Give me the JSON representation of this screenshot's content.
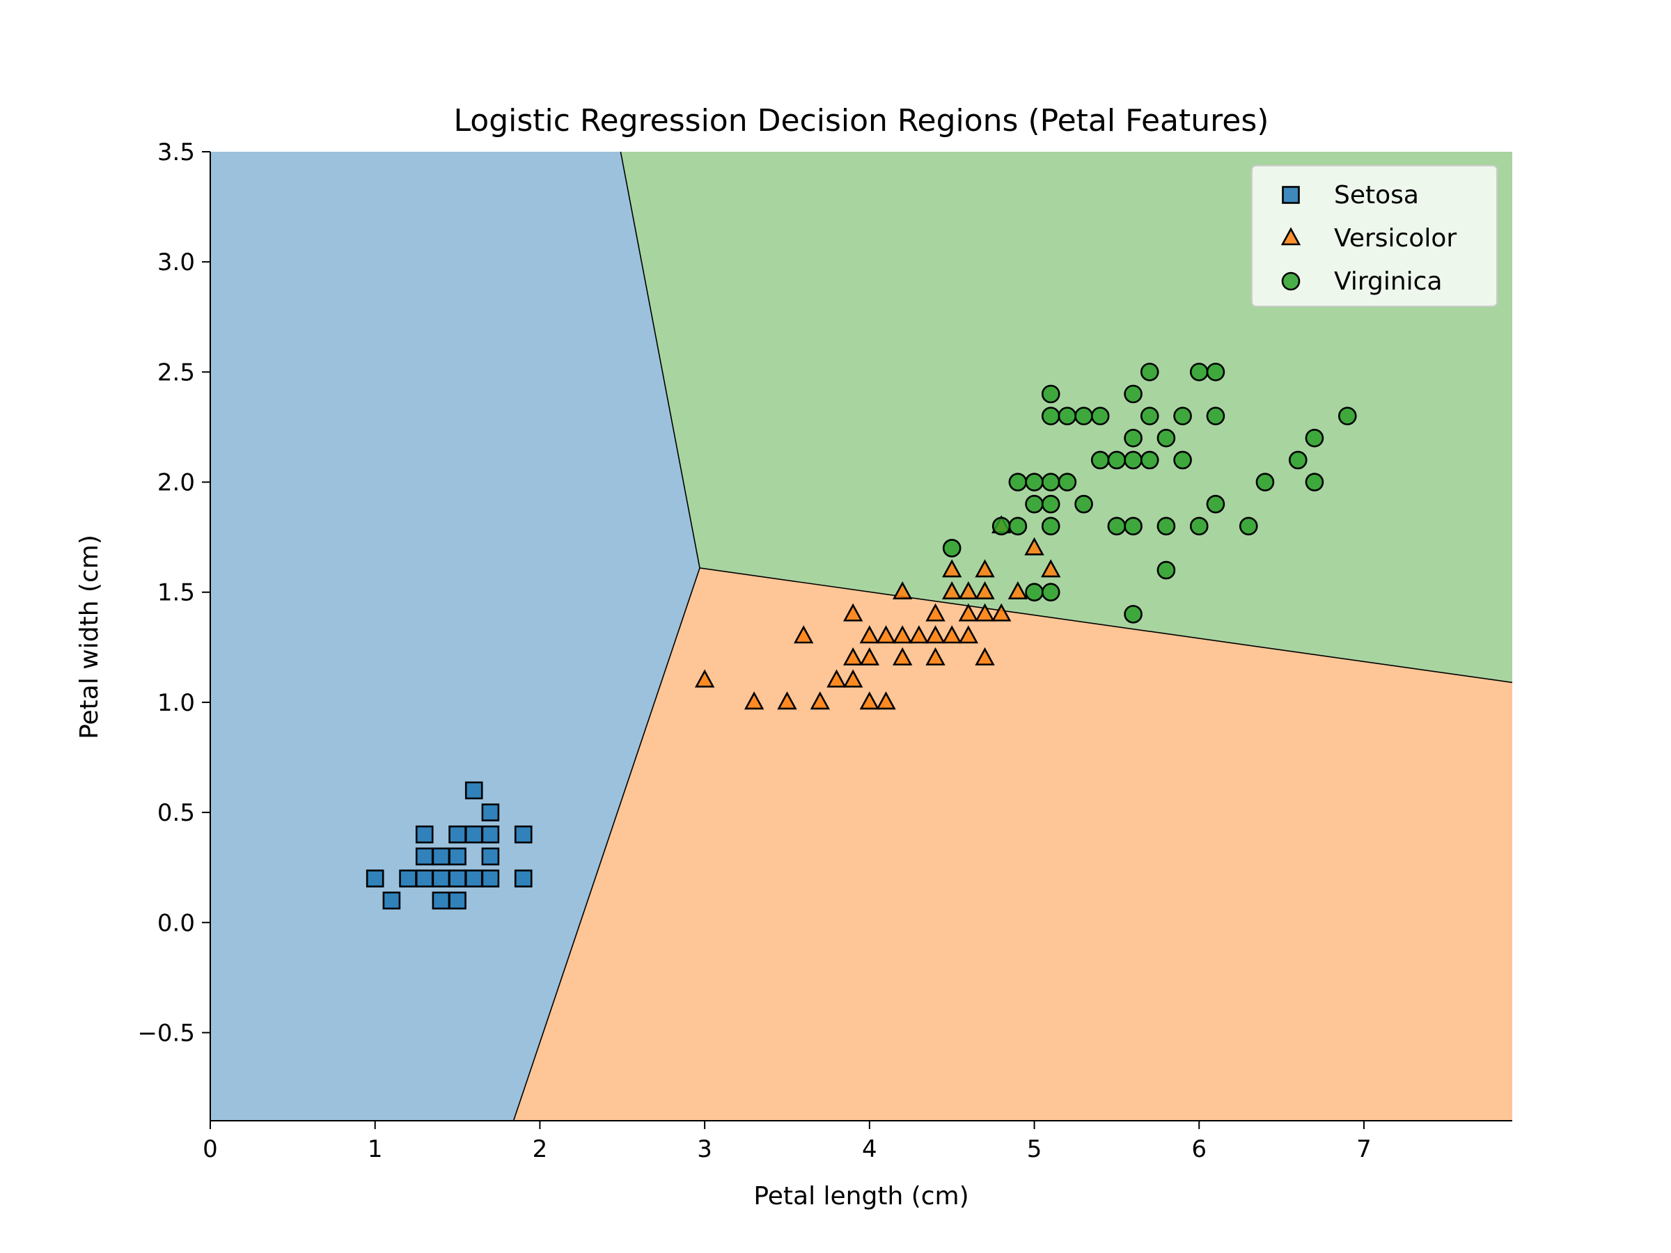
{
  "chart_data": {
    "type": "scatter",
    "title": "Logistic Regression Decision Regions (Petal Features)",
    "xlabel": "Petal length (cm)",
    "ylabel": "Petal width (cm)",
    "xlim": [
      0,
      7.9
    ],
    "ylim": [
      -0.9,
      3.5
    ],
    "xticks": [
      0,
      1,
      2,
      3,
      4,
      5,
      6,
      7
    ],
    "yticks": [
      -0.5,
      0.0,
      0.5,
      1.0,
      1.5,
      2.0,
      2.5,
      3.0,
      3.5
    ],
    "x_tick_labels": [
      "0",
      "1",
      "2",
      "3",
      "4",
      "5",
      "6",
      "7"
    ],
    "y_tick_labels": [
      "−0.5",
      "0.0",
      "0.5",
      "1.0",
      "1.5",
      "2.0",
      "2.5",
      "3.0",
      "3.5"
    ],
    "grid": false,
    "legend_position": "top-right",
    "decision_regions": {
      "junction": [
        2.97,
        1.61
      ],
      "boundaries": [
        {
          "between": [
            "Setosa",
            "Virginica"
          ],
          "from": [
            2.97,
            1.61
          ],
          "to": [
            2.49,
            3.5
          ]
        },
        {
          "between": [
            "Setosa",
            "Versicolor"
          ],
          "from": [
            2.97,
            1.61
          ],
          "to": [
            1.84,
            -0.9
          ]
        },
        {
          "between": [
            "Versicolor",
            "Virginica"
          ],
          "from": [
            2.97,
            1.61
          ],
          "to": [
            7.9,
            1.09
          ]
        }
      ],
      "colors": {
        "Setosa": "#9bc1dd",
        "Versicolor": "#fec596",
        "Virginica": "#a8d4a0"
      }
    },
    "series": [
      {
        "name": "Setosa",
        "marker": "square",
        "color": "#1f77b4",
        "points": [
          [
            1.0,
            0.2
          ],
          [
            1.1,
            0.1
          ],
          [
            1.2,
            0.2
          ],
          [
            1.3,
            0.2
          ],
          [
            1.3,
            0.3
          ],
          [
            1.3,
            0.4
          ],
          [
            1.4,
            0.1
          ],
          [
            1.4,
            0.2
          ],
          [
            1.4,
            0.3
          ],
          [
            1.5,
            0.1
          ],
          [
            1.5,
            0.2
          ],
          [
            1.5,
            0.3
          ],
          [
            1.5,
            0.4
          ],
          [
            1.6,
            0.2
          ],
          [
            1.6,
            0.4
          ],
          [
            1.6,
            0.6
          ],
          [
            1.7,
            0.2
          ],
          [
            1.7,
            0.3
          ],
          [
            1.7,
            0.4
          ],
          [
            1.7,
            0.5
          ],
          [
            1.9,
            0.2
          ],
          [
            1.9,
            0.4
          ]
        ]
      },
      {
        "name": "Versicolor",
        "marker": "triangle",
        "color": "#ff7f0e",
        "points": [
          [
            3.0,
            1.1
          ],
          [
            3.3,
            1.0
          ],
          [
            3.5,
            1.0
          ],
          [
            3.6,
            1.3
          ],
          [
            3.7,
            1.0
          ],
          [
            3.8,
            1.1
          ],
          [
            3.9,
            1.1
          ],
          [
            3.9,
            1.2
          ],
          [
            3.9,
            1.4
          ],
          [
            4.0,
            1.0
          ],
          [
            4.0,
            1.2
          ],
          [
            4.0,
            1.3
          ],
          [
            4.1,
            1.0
          ],
          [
            4.1,
            1.3
          ],
          [
            4.2,
            1.2
          ],
          [
            4.2,
            1.3
          ],
          [
            4.2,
            1.5
          ],
          [
            4.3,
            1.3
          ],
          [
            4.4,
            1.2
          ],
          [
            4.4,
            1.3
          ],
          [
            4.4,
            1.4
          ],
          [
            4.5,
            1.3
          ],
          [
            4.5,
            1.5
          ],
          [
            4.5,
            1.6
          ],
          [
            4.6,
            1.3
          ],
          [
            4.6,
            1.4
          ],
          [
            4.6,
            1.5
          ],
          [
            4.7,
            1.2
          ],
          [
            4.7,
            1.4
          ],
          [
            4.7,
            1.5
          ],
          [
            4.7,
            1.6
          ],
          [
            4.8,
            1.4
          ],
          [
            4.8,
            1.8
          ],
          [
            4.9,
            1.5
          ],
          [
            5.0,
            1.7
          ],
          [
            5.1,
            1.6
          ]
        ]
      },
      {
        "name": "Virginica",
        "marker": "circle",
        "color": "#2ca02c",
        "points": [
          [
            4.5,
            1.7
          ],
          [
            4.8,
            1.8
          ],
          [
            4.9,
            1.8
          ],
          [
            4.9,
            2.0
          ],
          [
            5.0,
            1.5
          ],
          [
            5.0,
            1.9
          ],
          [
            5.0,
            2.0
          ],
          [
            5.1,
            1.5
          ],
          [
            5.1,
            1.8
          ],
          [
            5.1,
            1.9
          ],
          [
            5.1,
            2.0
          ],
          [
            5.1,
            2.3
          ],
          [
            5.1,
            2.4
          ],
          [
            5.2,
            2.0
          ],
          [
            5.2,
            2.3
          ],
          [
            5.3,
            1.9
          ],
          [
            5.3,
            2.3
          ],
          [
            5.4,
            2.1
          ],
          [
            5.4,
            2.3
          ],
          [
            5.5,
            1.8
          ],
          [
            5.5,
            2.1
          ],
          [
            5.6,
            1.4
          ],
          [
            5.6,
            1.8
          ],
          [
            5.6,
            2.1
          ],
          [
            5.6,
            2.2
          ],
          [
            5.6,
            2.4
          ],
          [
            5.7,
            2.1
          ],
          [
            5.7,
            2.3
          ],
          [
            5.7,
            2.5
          ],
          [
            5.8,
            1.6
          ],
          [
            5.8,
            1.8
          ],
          [
            5.8,
            2.2
          ],
          [
            5.9,
            2.1
          ],
          [
            5.9,
            2.3
          ],
          [
            6.0,
            1.8
          ],
          [
            6.0,
            2.5
          ],
          [
            6.1,
            1.9
          ],
          [
            6.1,
            2.3
          ],
          [
            6.1,
            2.5
          ],
          [
            6.3,
            1.8
          ],
          [
            6.4,
            2.0
          ],
          [
            6.6,
            2.1
          ],
          [
            6.7,
            2.0
          ],
          [
            6.7,
            2.2
          ],
          [
            6.9,
            2.3
          ]
        ]
      }
    ]
  }
}
